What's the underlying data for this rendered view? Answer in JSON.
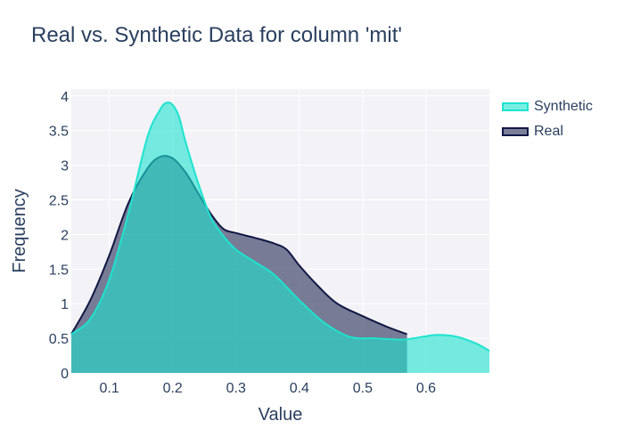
{
  "chart_data": {
    "type": "area",
    "title": "Real vs. Synthetic Data for column 'mit'",
    "xlabel": "Value",
    "ylabel": "Frequency",
    "xlim": [
      0.04,
      0.7
    ],
    "ylim": [
      0,
      4.1
    ],
    "xticks": [
      "0.1",
      "0.2",
      "0.3",
      "0.4",
      "0.5",
      "0.6"
    ],
    "yticks": [
      "0",
      "0.5",
      "1",
      "1.5",
      "2",
      "2.5",
      "3",
      "3.5",
      "4"
    ],
    "grid": true,
    "legend_position": "top-right",
    "series": [
      {
        "name": "Synthetic",
        "color": "#1ee3cf",
        "fill": "rgba(30,227,207,0.6)",
        "x": [
          0.04,
          0.07,
          0.1,
          0.13,
          0.16,
          0.18,
          0.19,
          0.2,
          0.21,
          0.22,
          0.24,
          0.26,
          0.28,
          0.3,
          0.33,
          0.36,
          0.4,
          0.44,
          0.48,
          0.52,
          0.56,
          0.58,
          0.6,
          0.62,
          0.65,
          0.68,
          0.7
        ],
        "y": [
          0.56,
          0.78,
          1.35,
          2.3,
          3.4,
          3.8,
          3.9,
          3.87,
          3.7,
          3.35,
          2.75,
          2.25,
          1.98,
          1.78,
          1.6,
          1.42,
          1.05,
          0.72,
          0.52,
          0.5,
          0.48,
          0.5,
          0.53,
          0.55,
          0.52,
          0.42,
          0.32
        ]
      },
      {
        "name": "Real",
        "color": "#111845",
        "fill": "rgba(17,24,69,0.55)",
        "x": [
          0.04,
          0.07,
          0.1,
          0.13,
          0.16,
          0.18,
          0.2,
          0.22,
          0.24,
          0.26,
          0.28,
          0.3,
          0.33,
          0.36,
          0.38,
          0.4,
          0.43,
          0.46,
          0.5,
          0.54,
          0.57
        ],
        "y": [
          0.56,
          1.05,
          1.7,
          2.45,
          2.95,
          3.12,
          3.1,
          2.9,
          2.6,
          2.3,
          2.08,
          2.02,
          1.95,
          1.87,
          1.78,
          1.55,
          1.25,
          1.0,
          0.82,
          0.66,
          0.56
        ]
      }
    ]
  }
}
